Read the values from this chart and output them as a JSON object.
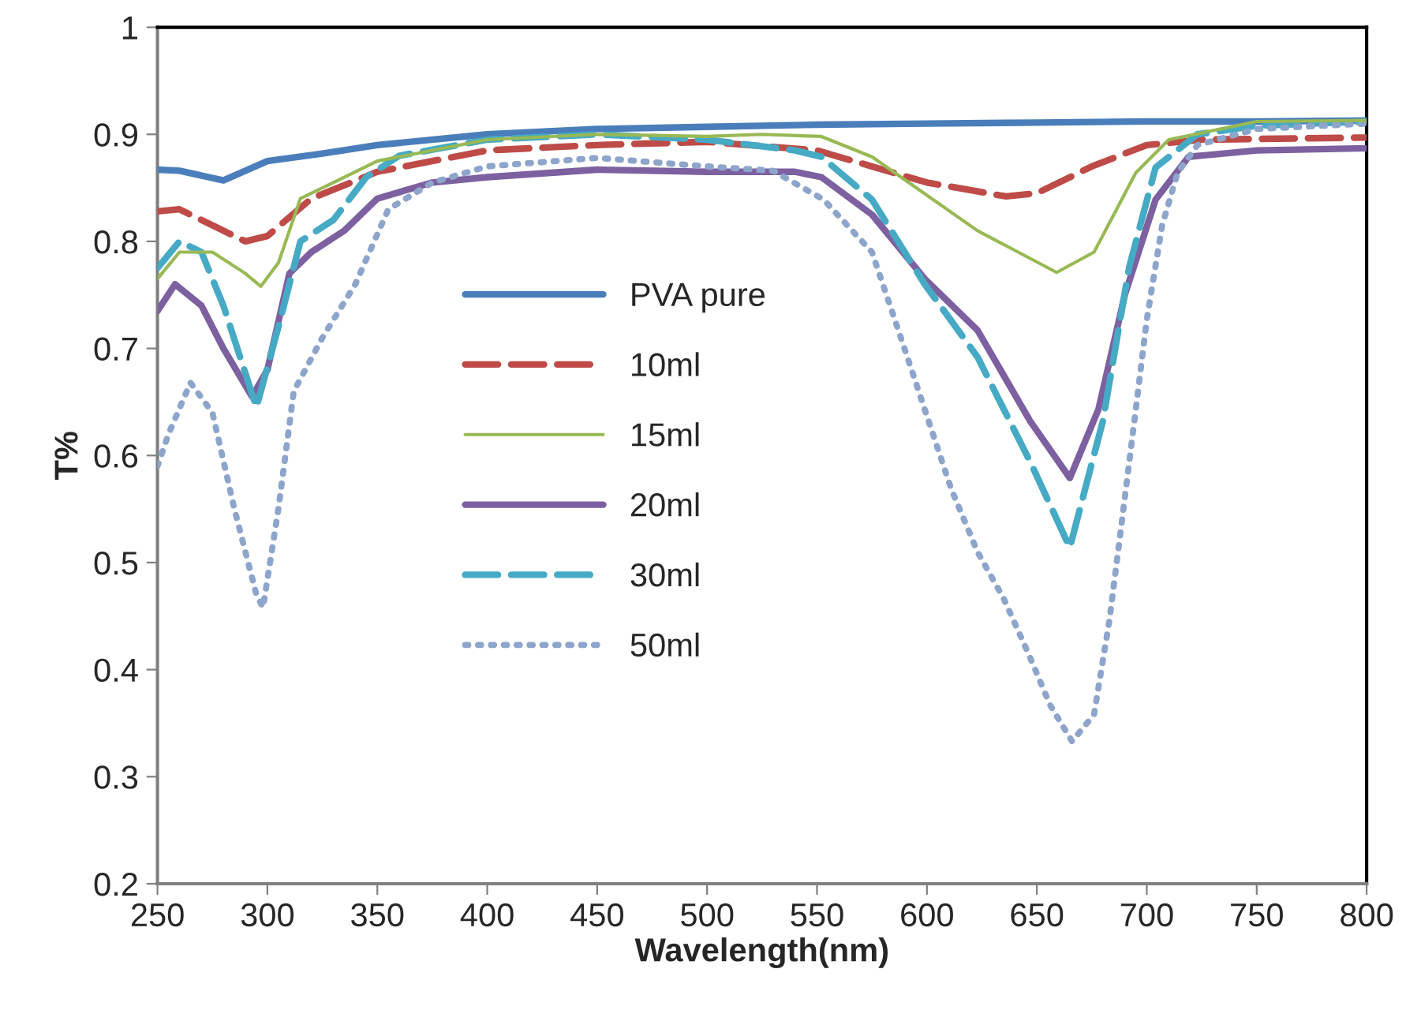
{
  "chart_data": {
    "type": "line",
    "xlabel": "Wavelength(nm)",
    "ylabel": "T%",
    "xlim": [
      250,
      800
    ],
    "xticks": [
      250,
      300,
      350,
      400,
      450,
      500,
      550,
      600,
      650,
      700,
      750,
      800
    ],
    "ylim": [
      0.2,
      1
    ],
    "yticks": [
      0.2,
      0.3,
      0.4,
      0.5,
      0.6,
      0.7,
      0.8,
      0.9,
      1
    ],
    "grid": false,
    "legend": "center left",
    "marker": "none",
    "series": [
      {
        "name": "PVA pure",
        "color": "#4a7ebb",
        "line_style": "solid",
        "x": [
          250,
          260,
          280,
          300,
          325,
          350,
          400,
          450,
          500,
          550,
          600,
          650,
          700,
          750,
          800
        ],
        "values": [
          0.867,
          0.866,
          0.857,
          0.875,
          0.882,
          0.89,
          0.9,
          0.905,
          0.907,
          0.909,
          0.91,
          0.911,
          0.912,
          0.912,
          0.913
        ]
      },
      {
        "name": "10ml",
        "color": "#be4b48",
        "line_style": "dashed",
        "x": [
          250,
          260,
          275,
          290,
          300,
          320,
          350,
          400,
          450,
          500,
          550,
          575,
          600,
          636,
          650,
          675,
          700,
          725,
          800
        ],
        "values": [
          0.828,
          0.83,
          0.815,
          0.8,
          0.805,
          0.84,
          0.865,
          0.885,
          0.89,
          0.893,
          0.885,
          0.87,
          0.855,
          0.842,
          0.845,
          0.87,
          0.89,
          0.895,
          0.897
        ]
      },
      {
        "name": "15ml",
        "color": "#98b954",
        "line_style": "solid",
        "x": [
          250,
          260,
          275,
          290,
          297,
          305,
          315,
          330,
          350,
          400,
          450,
          500,
          525,
          552,
          575,
          623,
          659,
          676,
          695,
          710,
          750,
          800
        ],
        "values": [
          0.765,
          0.79,
          0.79,
          0.77,
          0.758,
          0.78,
          0.84,
          0.855,
          0.875,
          0.895,
          0.9,
          0.898,
          0.9,
          0.898,
          0.879,
          0.81,
          0.771,
          0.79,
          0.864,
          0.895,
          0.912,
          0.913
        ]
      },
      {
        "name": "20ml",
        "color": "#7d60a0",
        "line_style": "solid",
        "x": [
          250,
          258,
          270,
          280,
          293,
          300,
          310,
          320,
          335,
          350,
          375,
          400,
          450,
          500,
          540,
          552,
          575,
          599,
          623,
          647,
          665,
          678,
          690,
          704,
          719,
          750,
          800
        ],
        "values": [
          0.735,
          0.76,
          0.74,
          0.7,
          0.655,
          0.68,
          0.77,
          0.79,
          0.81,
          0.84,
          0.855,
          0.86,
          0.867,
          0.865,
          0.865,
          0.86,
          0.825,
          0.765,
          0.717,
          0.632,
          0.579,
          0.643,
          0.75,
          0.839,
          0.879,
          0.885,
          0.887
        ]
      },
      {
        "name": "30ml",
        "color": "#46aac5",
        "line_style": "dashed",
        "x": [
          250,
          260,
          270,
          280,
          295,
          305,
          315,
          330,
          345,
          360,
          400,
          450,
          500,
          540,
          552,
          575,
          599,
          623,
          647,
          665,
          680,
          692,
          704,
          723,
          750,
          800
        ],
        "values": [
          0.775,
          0.8,
          0.79,
          0.74,
          0.645,
          0.72,
          0.8,
          0.82,
          0.86,
          0.88,
          0.895,
          0.9,
          0.895,
          0.885,
          0.879,
          0.839,
          0.76,
          0.692,
          0.594,
          0.514,
          0.632,
          0.776,
          0.869,
          0.9,
          0.908,
          0.912
        ]
      },
      {
        "name": "50ml",
        "color": "#8ea5cb",
        "line_style": "dotted",
        "x": [
          250,
          255,
          265,
          275,
          285,
          295,
          298,
          305,
          312,
          325,
          340,
          355,
          375,
          400,
          450,
          500,
          530,
          553,
          575,
          587,
          599,
          611,
          623,
          635,
          647,
          656,
          666,
          676,
          683,
          689,
          695,
          700,
          707,
          714,
          723,
          750,
          800
        ],
        "values": [
          0.59,
          0.62,
          0.668,
          0.64,
          0.55,
          0.47,
          0.458,
          0.55,
          0.66,
          0.71,
          0.76,
          0.83,
          0.855,
          0.87,
          0.878,
          0.87,
          0.866,
          0.839,
          0.79,
          0.717,
          0.643,
          0.569,
          0.51,
          0.466,
          0.411,
          0.367,
          0.333,
          0.358,
          0.446,
          0.544,
          0.643,
          0.727,
          0.815,
          0.864,
          0.89,
          0.905,
          0.91
        ]
      }
    ]
  }
}
